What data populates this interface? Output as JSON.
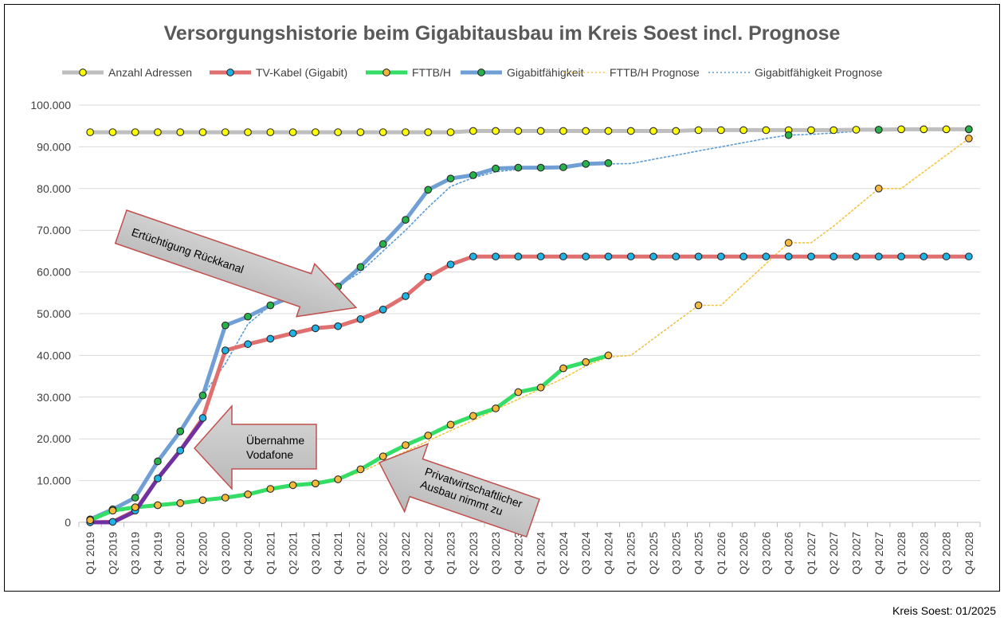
{
  "chart_data": {
    "type": "line",
    "title": "Versorgungshistorie beim Gigabitausbau im Kreis Soest incl. Prognose",
    "xlabel": "",
    "ylabel": "",
    "ylim": [
      0,
      100000
    ],
    "yticks": [
      "0",
      "10.000",
      "20.000",
      "30.000",
      "40.000",
      "50.000",
      "60.000",
      "70.000",
      "80.000",
      "90.000",
      "100.000"
    ],
    "grid": true,
    "legend_position": "top",
    "categories": [
      "Q1 2019",
      "Q2 2019",
      "Q3 2019",
      "Q4 2019",
      "Q1 2020",
      "Q2 2020",
      "Q3 2020",
      "Q4 2020",
      "Q1 2021",
      "Q2 2021",
      "Q3 2021",
      "Q4 2021",
      "Q1 2022",
      "Q2 2022",
      "Q3 2022",
      "Q4 2022",
      "Q1 2023",
      "Q2 2023",
      "Q3 2023",
      "Q4 2023",
      "Q1 2024",
      "Q2 2024",
      "Q3 2024",
      "Q4 2024",
      "Q1 2025",
      "Q2 2025",
      "Q3 2025",
      "Q4 2025",
      "Q1 2026",
      "Q2 2026",
      "Q3 2026",
      "Q4 2026",
      "Q1 2027",
      "Q2 2027",
      "Q3 2027",
      "Q4 2027",
      "Q1 2028",
      "Q2 2028",
      "Q3 2028",
      "Q4 2028"
    ],
    "series": [
      {
        "name": "Anzahl Adressen",
        "style": "solid",
        "color": "#bfbfbf",
        "marker": "#ffff00",
        "values": [
          93500,
          93500,
          93500,
          93500,
          93500,
          93500,
          93500,
          93500,
          93500,
          93500,
          93500,
          93500,
          93500,
          93500,
          93500,
          93500,
          93500,
          93800,
          93800,
          93800,
          93800,
          93800,
          93800,
          93800,
          93800,
          93800,
          93800,
          94000,
          94000,
          94000,
          94000,
          94000,
          94000,
          94000,
          94100,
          94100,
          94200,
          94200,
          94200,
          94200
        ]
      },
      {
        "name": "TV-Kabel (Gigabit)",
        "style": "solid",
        "color": "#e07070",
        "marker": "#1fb4e6",
        "values": [
          0,
          100,
          2800,
          10500,
          17200,
          25000,
          41200,
          42700,
          44000,
          45300,
          46500,
          47000,
          48700,
          51000,
          54200,
          58800,
          61800,
          63700,
          63700,
          63700,
          63700,
          63700,
          63700,
          63700,
          63700,
          63700,
          63700,
          63700,
          63700,
          63700,
          63700,
          63700,
          63700,
          63700,
          63700,
          63700,
          63700,
          63700,
          63700,
          63700
        ]
      },
      {
        "name": "FTTB/H",
        "style": "solid",
        "color": "#33dd66",
        "marker": "#f6b93b",
        "values": [
          500,
          2800,
          3600,
          4100,
          4600,
          5300,
          5900,
          6700,
          8000,
          8900,
          9300,
          10300,
          12700,
          15800,
          18500,
          20800,
          23400,
          25500,
          27300,
          31200,
          32300,
          36900,
          38400,
          40000,
          null,
          null,
          null,
          null,
          null,
          null,
          null,
          null,
          null,
          null,
          null,
          null,
          null,
          null,
          null,
          null
        ]
      },
      {
        "name": "Gigabitfähigkeit",
        "style": "solid",
        "color": "#6f9fd4",
        "marker": "#27b34a",
        "values": [
          700,
          3100,
          5900,
          14600,
          21800,
          30400,
          47200,
          49300,
          52000,
          54200,
          55500,
          56500,
          61200,
          66700,
          72500,
          79700,
          82400,
          83200,
          84800,
          85000,
          85000,
          85100,
          85900,
          86100,
          null,
          null,
          null,
          null,
          null,
          null,
          null,
          null,
          null,
          null,
          null,
          null,
          null,
          null,
          null,
          null
        ]
      },
      {
        "name": "FTTB/H Prognose",
        "style": "dotted",
        "color": "#f4c542",
        "marker": "#f6b93b",
        "values": [
          500,
          2800,
          3600,
          4100,
          4600,
          5300,
          5900,
          6700,
          8000,
          8900,
          9300,
          10300,
          12000,
          14500,
          17000,
          19500,
          22000,
          24400,
          27000,
          29500,
          32000,
          34500,
          37500,
          39600,
          40000,
          44000,
          48000,
          52000,
          52000,
          57000,
          62000,
          67000,
          67000,
          71000,
          75500,
          80000,
          80000,
          84000,
          88000,
          92000
        ],
        "marker_indices": [
          27,
          31,
          35,
          39
        ]
      },
      {
        "name": "Gigabitfähigkeit Prognose",
        "style": "dotted",
        "color": "#5b9bd5",
        "marker": "#27b34a",
        "values": [
          700,
          3100,
          5900,
          14600,
          21800,
          30400,
          38000,
          47500,
          52000,
          54200,
          55500,
          56500,
          60000,
          65000,
          70000,
          75500,
          80500,
          82600,
          84000,
          84600,
          84900,
          85200,
          85600,
          85900,
          86000,
          87000,
          88000,
          89000,
          90000,
          91000,
          92000,
          92800,
          93000,
          93300,
          93700,
          94100,
          94100,
          94200,
          94200,
          94200
        ],
        "marker_indices": [
          31,
          35,
          39
        ]
      },
      {
        "name": "",
        "style": "solid",
        "color": "#7030a0",
        "marker": null,
        "values": [
          0,
          0,
          2600,
          10500,
          17200,
          24500,
          null,
          null,
          null,
          null,
          null,
          null,
          null,
          null,
          null,
          null,
          null,
          null,
          null,
          null,
          null,
          null,
          null,
          null,
          null,
          null,
          null,
          null,
          null,
          null,
          null,
          null,
          null,
          null,
          null,
          null,
          null,
          null,
          null,
          null
        ]
      }
    ],
    "annotations": [
      {
        "text": "Ertüchtigung Rückkanal",
        "direction": "right"
      },
      {
        "lines": [
          "Übernahme",
          "Vodafone"
        ],
        "direction": "left"
      },
      {
        "lines": [
          "Privatwirtschaftlicher",
          "Ausbau nimmt zu"
        ],
        "direction": "left"
      }
    ]
  },
  "footer": "Kreis Soest: 01/2025"
}
